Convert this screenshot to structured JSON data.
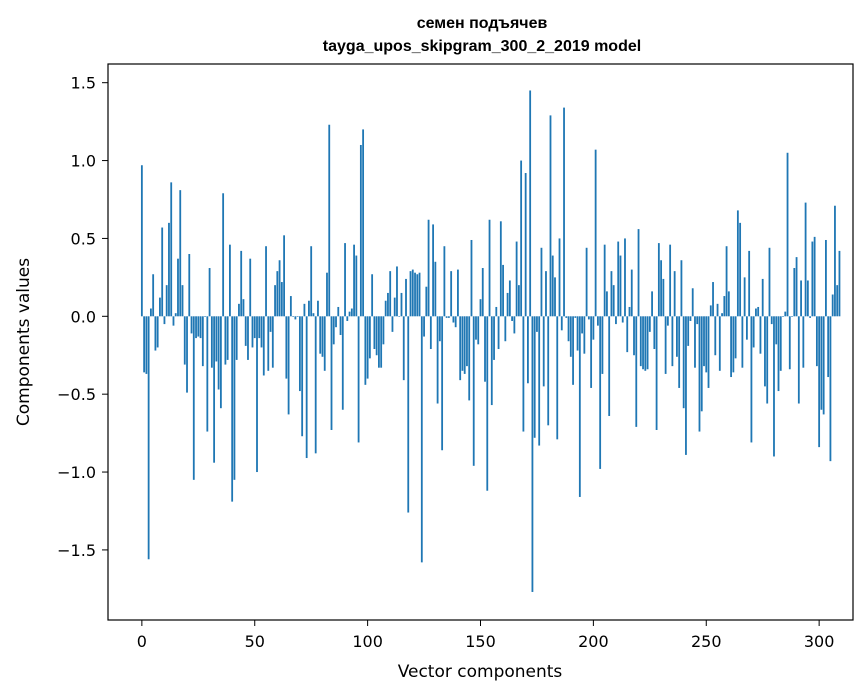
{
  "chart_data": {
    "type": "bar",
    "title": "семен подъячев",
    "subtitle": "tayga_upos_skipgram_300_2_2019 model",
    "xlabel": "Vector components",
    "ylabel": "Components values",
    "xlim": [
      -15,
      315
    ],
    "ylim": [
      -1.95,
      1.62
    ],
    "xticks": [
      0,
      50,
      100,
      150,
      200,
      250,
      300
    ],
    "xtick_labels": [
      "0",
      "50",
      "100",
      "150",
      "200",
      "250",
      "300"
    ],
    "yticks": [
      -1.5,
      -1.0,
      -0.5,
      0.0,
      0.5,
      1.0,
      1.5
    ],
    "ytick_labels": [
      "−1.5",
      "−1.0",
      "−0.5",
      "0.0",
      "0.5",
      "1.0",
      "1.5"
    ],
    "grid": false,
    "bar_color": "#1f77b4",
    "x_start": 0,
    "values": [
      0.97,
      -0.36,
      -0.37,
      -1.56,
      0.05,
      0.27,
      -0.22,
      -0.2,
      0.12,
      0.57,
      -0.05,
      0.2,
      0.6,
      0.86,
      -0.06,
      0.02,
      0.37,
      0.81,
      0.2,
      -0.31,
      -0.49,
      0.4,
      -0.11,
      -1.05,
      -0.14,
      -0.13,
      -0.14,
      -0.32,
      0.0,
      -0.74,
      0.31,
      -0.33,
      -0.94,
      -0.29,
      -0.47,
      -0.59,
      0.79,
      -0.31,
      -0.28,
      0.46,
      -1.19,
      -1.05,
      -0.28,
      0.08,
      0.42,
      0.11,
      -0.19,
      -0.28,
      0.37,
      -0.2,
      -0.14,
      -1.0,
      -0.14,
      -0.2,
      -0.38,
      0.45,
      -0.35,
      -0.1,
      -0.33,
      0.2,
      0.29,
      0.36,
      0.22,
      0.52,
      -0.4,
      -0.63,
      0.13,
      0.0,
      -0.02,
      0.0,
      -0.48,
      -0.77,
      0.08,
      -0.91,
      0.1,
      0.45,
      0.02,
      -0.88,
      0.1,
      -0.24,
      -0.26,
      -0.35,
      0.28,
      1.23,
      -0.73,
      -0.18,
      -0.07,
      0.06,
      -0.12,
      -0.6,
      0.47,
      -0.03,
      0.03,
      0.05,
      0.46,
      0.39,
      -0.81,
      1.1,
      1.2,
      -0.44,
      -0.4,
      -0.27,
      0.27,
      -0.21,
      -0.25,
      -0.33,
      -0.33,
      -0.18,
      0.1,
      0.15,
      0.29,
      -0.1,
      0.12,
      0.32,
      0.0,
      0.15,
      -0.41,
      0.24,
      -1.26,
      0.29,
      0.3,
      0.28,
      0.27,
      0.28,
      -1.58,
      -0.13,
      0.19,
      0.62,
      -0.21,
      0.59,
      0.35,
      -0.56,
      -0.16,
      -0.86,
      0.45,
      -0.01,
      -0.01,
      0.29,
      -0.04,
      -0.07,
      0.3,
      -0.41,
      -0.35,
      -0.37,
      -0.32,
      -0.54,
      0.49,
      -0.96,
      -0.15,
      -0.18,
      0.11,
      0.31,
      -0.42,
      -1.12,
      0.62,
      -0.57,
      -0.28,
      0.06,
      -0.21,
      0.61,
      0.33,
      -0.16,
      0.15,
      0.23,
      -0.03,
      -0.11,
      0.48,
      0.2,
      1.0,
      -0.74,
      0.92,
      -0.43,
      1.45,
      -1.77,
      -0.78,
      -0.1,
      -0.83,
      0.44,
      -0.45,
      0.29,
      -0.7,
      1.29,
      0.39,
      0.25,
      -0.79,
      0.5,
      -0.09,
      1.34,
      -0.01,
      -0.16,
      -0.26,
      -0.44,
      -0.01,
      -0.22,
      -1.16,
      -0.11,
      -0.24,
      0.44,
      -0.02,
      -0.46,
      -0.15,
      1.07,
      -0.06,
      -0.98,
      -0.37,
      0.46,
      0.16,
      -0.64,
      0.29,
      0.2,
      -0.05,
      0.48,
      0.39,
      -0.04,
      0.5,
      -0.23,
      0.06,
      0.3,
      -0.25,
      -0.71,
      0.56,
      -0.32,
      -0.34,
      -0.35,
      -0.34,
      -0.1,
      0.16,
      -0.21,
      -0.73,
      0.47,
      0.36,
      0.24,
      -0.37,
      -0.06,
      0.46,
      -0.32,
      0.29,
      -0.26,
      -0.46,
      0.36,
      -0.59,
      -0.89,
      -0.19,
      -0.03,
      0.18,
      -0.33,
      -0.05,
      -0.74,
      -0.61,
      -0.32,
      -0.36,
      -0.46,
      0.07,
      0.22,
      -0.25,
      0.08,
      -0.35,
      0.02,
      0.13,
      0.45,
      0.16,
      -0.39,
      -0.36,
      -0.27,
      0.68,
      0.6,
      -0.33,
      0.25,
      -0.15,
      0.42,
      -0.81,
      -0.2,
      0.05,
      0.06,
      -0.24,
      0.24,
      -0.45,
      -0.56,
      0.44,
      -0.05,
      -0.9,
      -0.18,
      -0.48,
      -0.35,
      0.0,
      0.03,
      1.05,
      -0.34,
      0.0,
      0.31,
      0.38,
      -0.56,
      0.23,
      -0.33,
      0.73,
      0.23,
      -0.01,
      0.48,
      0.51,
      -0.32,
      -0.84,
      -0.6,
      -0.63,
      0.49,
      -0.39,
      -0.93,
      0.14,
      0.71,
      0.2,
      0.42
    ]
  }
}
